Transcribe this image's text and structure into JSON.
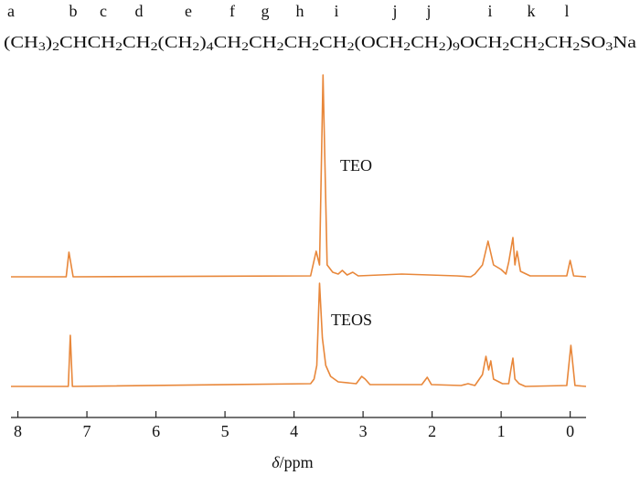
{
  "chart_data": {
    "type": "line",
    "letters": [
      "a",
      "b",
      "c",
      "d",
      "e",
      "f",
      "g",
      "h",
      "i",
      "j",
      "j",
      "i",
      "k",
      "l"
    ],
    "formula": "(CH3)2CHCH2CH2(CH2)4CH2CH2CH2CH2(OCH2CH2)9OCH2CH2CH2SO3Na",
    "x_label": "δ/ppm",
    "xlim": [
      8.1,
      -0.23
    ],
    "xticks": [
      8,
      7,
      6,
      5,
      4,
      3,
      2,
      1,
      0
    ],
    "ylim": [
      0,
      380
    ],
    "series": [
      {
        "name": "TEO",
        "color": "#e8873a",
        "x": [
          8.1,
          7.3,
          7.26,
          7.2,
          3.76,
          3.68,
          3.63,
          3.58,
          3.52,
          3.44,
          3.36,
          3.3,
          3.23,
          3.15,
          3.07,
          2.44,
          1.64,
          1.44,
          1.38,
          1.27,
          1.19,
          1.11,
          1.0,
          0.93,
          0.89,
          0.83,
          0.8,
          0.77,
          0.72,
          0.58,
          0.05,
          0.0,
          -0.05,
          -0.23
        ],
        "values": [
          154,
          154,
          181,
          154,
          155,
          182,
          167,
          375,
          167,
          159,
          157,
          161,
          156,
          159,
          155,
          157,
          155,
          154,
          157,
          167,
          193,
          167,
          162,
          157,
          170,
          197,
          167,
          182,
          160,
          155,
          155,
          172,
          155,
          154
        ]
      },
      {
        "name": "TEOS",
        "color": "#e8873a",
        "x": [
          8.1,
          7.27,
          7.24,
          7.21,
          3.76,
          3.71,
          3.67,
          3.63,
          3.59,
          3.54,
          3.47,
          3.36,
          3.1,
          3.02,
          2.97,
          2.9,
          2.15,
          2.07,
          2.01,
          1.58,
          1.48,
          1.38,
          1.27,
          1.22,
          1.18,
          1.15,
          1.11,
          0.98,
          0.89,
          0.86,
          0.83,
          0.8,
          0.74,
          0.65,
          0.05,
          -0.01,
          -0.07,
          -0.23
        ],
        "values": [
          34,
          34,
          90,
          34,
          37,
          42,
          57,
          147,
          87,
          57,
          45,
          39,
          37,
          45,
          42,
          36,
          36,
          44,
          36,
          35,
          37,
          35,
          47,
          67,
          52,
          62,
          42,
          37,
          37,
          52,
          65,
          42,
          37,
          34,
          35,
          79,
          35,
          34
        ]
      }
    ]
  }
}
